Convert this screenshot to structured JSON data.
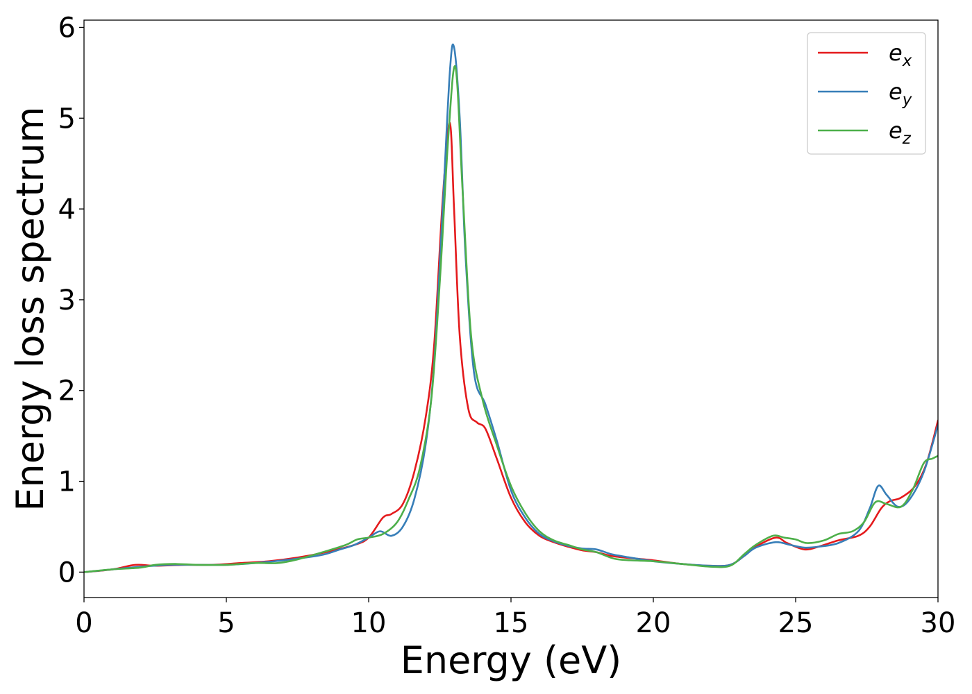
{
  "chart_data": {
    "type": "line",
    "title": "",
    "xlabel": "Energy (eV)",
    "ylabel": "Energy loss spectrum",
    "xlim": [
      0,
      30
    ],
    "ylim": [
      -0.28,
      6.08
    ],
    "xticks": [
      0,
      5,
      10,
      15,
      20,
      25,
      30
    ],
    "yticks": [
      0,
      1,
      2,
      3,
      4,
      5,
      6
    ],
    "grid": false,
    "legend": {
      "placement": "top-right",
      "entries": [
        {
          "base": "e",
          "sub": "x"
        },
        {
          "base": "e",
          "sub": "y"
        },
        {
          "base": "e",
          "sub": "z"
        }
      ]
    },
    "series": [
      {
        "name": "e_x",
        "color": "#e41a1c",
        "points": [
          [
            0,
            0
          ],
          [
            1,
            0.03
          ],
          [
            1.8,
            0.08
          ],
          [
            2.5,
            0.07
          ],
          [
            3.5,
            0.08
          ],
          [
            4.5,
            0.08
          ],
          [
            5.5,
            0.1
          ],
          [
            6.5,
            0.12
          ],
          [
            7.5,
            0.16
          ],
          [
            8.5,
            0.22
          ],
          [
            9.5,
            0.3
          ],
          [
            10,
            0.38
          ],
          [
            10.5,
            0.6
          ],
          [
            10.8,
            0.64
          ],
          [
            11.2,
            0.75
          ],
          [
            11.6,
            1.1
          ],
          [
            12,
            1.7
          ],
          [
            12.3,
            2.5
          ],
          [
            12.6,
            4.1
          ],
          [
            12.85,
            4.95
          ],
          [
            13,
            4.0
          ],
          [
            13.2,
            2.6
          ],
          [
            13.5,
            1.8
          ],
          [
            13.8,
            1.65
          ],
          [
            14.1,
            1.58
          ],
          [
            14.5,
            1.25
          ],
          [
            15,
            0.82
          ],
          [
            15.5,
            0.55
          ],
          [
            16,
            0.4
          ],
          [
            16.5,
            0.33
          ],
          [
            17,
            0.28
          ],
          [
            17.5,
            0.24
          ],
          [
            18,
            0.22
          ],
          [
            18.5,
            0.18
          ],
          [
            19,
            0.16
          ],
          [
            20,
            0.13
          ],
          [
            21,
            0.09
          ],
          [
            22,
            0.07
          ],
          [
            22.7,
            0.08
          ],
          [
            23.2,
            0.18
          ],
          [
            23.6,
            0.28
          ],
          [
            24.3,
            0.38
          ],
          [
            24.7,
            0.32
          ],
          [
            25.3,
            0.25
          ],
          [
            25.8,
            0.28
          ],
          [
            26.5,
            0.35
          ],
          [
            27.2,
            0.4
          ],
          [
            27.6,
            0.5
          ],
          [
            28,
            0.7
          ],
          [
            28.3,
            0.78
          ],
          [
            28.7,
            0.82
          ],
          [
            29.2,
            0.95
          ],
          [
            29.6,
            1.2
          ],
          [
            30,
            1.67
          ]
        ]
      },
      {
        "name": "e_y",
        "color": "#377eb8",
        "points": [
          [
            0,
            0
          ],
          [
            1,
            0.03
          ],
          [
            2,
            0.06
          ],
          [
            3,
            0.08
          ],
          [
            4,
            0.08
          ],
          [
            5,
            0.08
          ],
          [
            6,
            0.1
          ],
          [
            7,
            0.13
          ],
          [
            8,
            0.17
          ],
          [
            8.5,
            0.2
          ],
          [
            9,
            0.25
          ],
          [
            9.5,
            0.3
          ],
          [
            10,
            0.38
          ],
          [
            10.4,
            0.45
          ],
          [
            10.8,
            0.4
          ],
          [
            11.2,
            0.5
          ],
          [
            11.6,
            0.8
          ],
          [
            12,
            1.4
          ],
          [
            12.3,
            2.3
          ],
          [
            12.6,
            4.0
          ],
          [
            12.85,
            5.5
          ],
          [
            13,
            5.78
          ],
          [
            13.2,
            5.0
          ],
          [
            13.4,
            3.5
          ],
          [
            13.7,
            2.2
          ],
          [
            14.1,
            1.85
          ],
          [
            14.5,
            1.45
          ],
          [
            15,
            0.9
          ],
          [
            15.5,
            0.6
          ],
          [
            16,
            0.42
          ],
          [
            16.5,
            0.34
          ],
          [
            17,
            0.29
          ],
          [
            17.5,
            0.26
          ],
          [
            18,
            0.25
          ],
          [
            18.5,
            0.2
          ],
          [
            19,
            0.17
          ],
          [
            20,
            0.12
          ],
          [
            21,
            0.09
          ],
          [
            22,
            0.07
          ],
          [
            22.7,
            0.08
          ],
          [
            23.2,
            0.18
          ],
          [
            23.6,
            0.27
          ],
          [
            24.3,
            0.33
          ],
          [
            24.8,
            0.3
          ],
          [
            25.3,
            0.27
          ],
          [
            25.8,
            0.28
          ],
          [
            26.5,
            0.32
          ],
          [
            27.2,
            0.45
          ],
          [
            27.6,
            0.7
          ],
          [
            27.9,
            0.95
          ],
          [
            28.2,
            0.85
          ],
          [
            28.6,
            0.72
          ],
          [
            29,
            0.8
          ],
          [
            29.5,
            1.1
          ],
          [
            30,
            1.62
          ]
        ]
      },
      {
        "name": "e_z",
        "color": "#4daf4a",
        "points": [
          [
            0,
            0
          ],
          [
            1,
            0.03
          ],
          [
            2,
            0.05
          ],
          [
            2.5,
            0.08
          ],
          [
            3.2,
            0.09
          ],
          [
            4,
            0.08
          ],
          [
            5,
            0.08
          ],
          [
            6,
            0.1
          ],
          [
            6.8,
            0.1
          ],
          [
            7.5,
            0.14
          ],
          [
            8.5,
            0.23
          ],
          [
            9.2,
            0.3
          ],
          [
            9.6,
            0.36
          ],
          [
            10,
            0.38
          ],
          [
            10.5,
            0.42
          ],
          [
            11,
            0.55
          ],
          [
            11.4,
            0.8
          ],
          [
            11.8,
            1.15
          ],
          [
            12.2,
            1.9
          ],
          [
            12.5,
            3.2
          ],
          [
            12.8,
            4.8
          ],
          [
            13.05,
            5.56
          ],
          [
            13.3,
            4.2
          ],
          [
            13.6,
            2.6
          ],
          [
            14,
            1.9
          ],
          [
            14.5,
            1.4
          ],
          [
            15,
            0.95
          ],
          [
            15.5,
            0.65
          ],
          [
            16,
            0.45
          ],
          [
            16.5,
            0.35
          ],
          [
            17,
            0.3
          ],
          [
            17.5,
            0.25
          ],
          [
            18,
            0.22
          ],
          [
            18.6,
            0.15
          ],
          [
            19.2,
            0.13
          ],
          [
            20,
            0.12
          ],
          [
            21,
            0.09
          ],
          [
            22,
            0.06
          ],
          [
            22.7,
            0.07
          ],
          [
            23.2,
            0.2
          ],
          [
            23.6,
            0.3
          ],
          [
            24.2,
            0.4
          ],
          [
            24.6,
            0.38
          ],
          [
            25,
            0.36
          ],
          [
            25.4,
            0.32
          ],
          [
            26,
            0.35
          ],
          [
            26.5,
            0.42
          ],
          [
            27,
            0.45
          ],
          [
            27.4,
            0.55
          ],
          [
            27.8,
            0.77
          ],
          [
            28.2,
            0.75
          ],
          [
            28.7,
            0.72
          ],
          [
            29.1,
            0.9
          ],
          [
            29.5,
            1.2
          ],
          [
            29.8,
            1.25
          ],
          [
            30,
            1.28
          ]
        ]
      }
    ]
  }
}
